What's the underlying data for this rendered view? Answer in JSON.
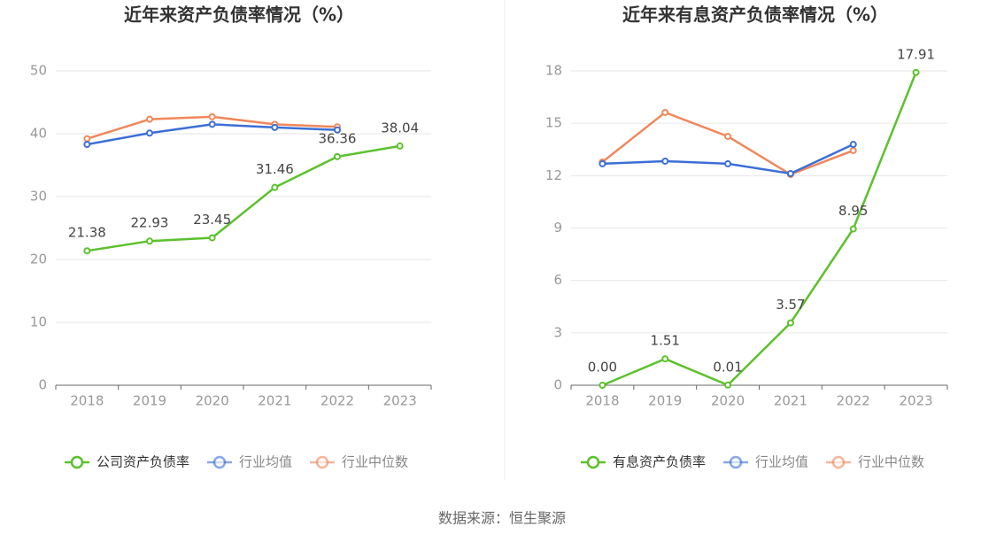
{
  "chart_data": [
    {
      "type": "line",
      "title": "近年来资产负债率情况（%）",
      "categories": [
        "2018",
        "2019",
        "2020",
        "2021",
        "2022",
        "2023"
      ],
      "ylim": [
        0,
        50
      ],
      "yticks": [
        0,
        10,
        20,
        30,
        40,
        50
      ],
      "grid": true,
      "series": [
        {
          "name": "公司资产负债率",
          "color": "#5cc12c",
          "values": [
            21.38,
            22.93,
            23.45,
            31.46,
            36.36,
            38.04
          ]
        },
        {
          "name": "行业均值",
          "color": "#3b6fd6",
          "values": [
            38.3,
            40.1,
            41.5,
            41.0,
            40.6,
            null
          ]
        },
        {
          "name": "行业中位数",
          "color": "#f0875a",
          "values": [
            39.2,
            42.3,
            42.7,
            41.5,
            41.1,
            null
          ]
        }
      ]
    },
    {
      "type": "line",
      "title": "近年来有息资产负债率情况（%）",
      "categories": [
        "2018",
        "2019",
        "2020",
        "2021",
        "2022",
        "2023"
      ],
      "ylim": [
        0,
        18
      ],
      "yticks": [
        0,
        3,
        6,
        9,
        12,
        15,
        18
      ],
      "grid": true,
      "series": [
        {
          "name": "有息资产负债率",
          "color": "#5cc12c",
          "values": [
            0,
            1.51,
            0.01,
            3.57,
            8.95,
            17.91
          ],
          "value_labels": [
            "0.00",
            "1.51",
            "0.01",
            "3.57",
            "8.95",
            "17.91"
          ]
        },
        {
          "name": "行业均值",
          "color": "#3b6fd6",
          "values": [
            12.68,
            12.83,
            12.68,
            12.12,
            13.79,
            null
          ]
        },
        {
          "name": "行业中位数",
          "color": "#f0875a",
          "values": [
            12.78,
            15.62,
            14.25,
            12.07,
            13.44,
            null
          ]
        }
      ]
    }
  ],
  "source": "数据来源：恒生聚源"
}
